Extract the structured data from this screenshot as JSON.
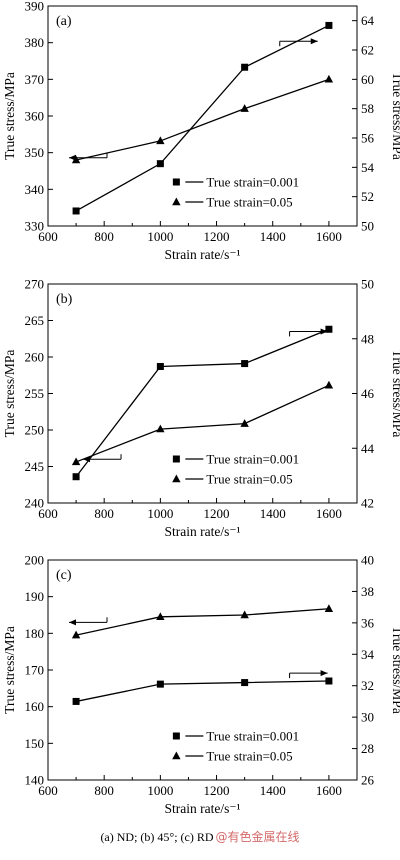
{
  "caption": "(a) ND; (b) 45°; (c) RD",
  "watermark": "@有色金属在线",
  "chart_data": [
    {
      "type": "line",
      "panel_label": "(a)",
      "xlabel": "Strain rate/s⁻¹",
      "ylabel": "True stress/MPa",
      "ylabel_right": "True stress/MPa",
      "xlim": [
        600,
        1700
      ],
      "xticks": [
        600,
        800,
        1000,
        1200,
        1400,
        1600
      ],
      "ylim": [
        330,
        390
      ],
      "yticks": [
        330,
        340,
        350,
        360,
        370,
        380,
        390
      ],
      "ylim_right": [
        50,
        65
      ],
      "yticks_right": [
        50,
        52,
        54,
        56,
        58,
        60,
        62,
        64
      ],
      "series": [
        {
          "name": "True strain=0.001",
          "marker": "square",
          "axis": "left",
          "x": [
            700,
            1000,
            1300,
            1600
          ],
          "y": [
            334.1,
            347.0,
            373.3,
            384.7
          ]
        },
        {
          "name": "True strain=0.05",
          "marker": "triangle",
          "axis": "right",
          "x": [
            700,
            1000,
            1300,
            1600
          ],
          "y": [
            54.5,
            55.8,
            58.0,
            60.0
          ]
        }
      ],
      "arrows": [
        {
          "direction": "left",
          "points_to": "True strain=0.05"
        },
        {
          "direction": "right",
          "points_to": "True strain=0.001"
        }
      ],
      "legend_placement": "bottom-right"
    },
    {
      "type": "line",
      "panel_label": "(b)",
      "xlabel": "Strain rate/s⁻¹",
      "ylabel": "True stress/MPa",
      "ylabel_right": "True stress/MPa",
      "xlim": [
        600,
        1700
      ],
      "xticks": [
        600,
        800,
        1000,
        1200,
        1400,
        1600
      ],
      "ylim": [
        240,
        270
      ],
      "yticks": [
        240,
        245,
        250,
        255,
        260,
        265,
        270
      ],
      "ylim_right": [
        42,
        50
      ],
      "yticks_right": [
        42,
        44,
        46,
        48,
        50
      ],
      "series": [
        {
          "name": "True strain=0.001",
          "marker": "square",
          "axis": "left",
          "x": [
            700,
            1000,
            1300,
            1600
          ],
          "y": [
            243.6,
            258.7,
            259.1,
            263.8
          ]
        },
        {
          "name": "True strain=0.05",
          "marker": "triangle",
          "axis": "right",
          "x": [
            700,
            1000,
            1300,
            1600
          ],
          "y": [
            43.5,
            44.7,
            44.9,
            46.3
          ]
        }
      ],
      "arrows": [
        {
          "direction": "left",
          "points_to": "True strain=0.05"
        },
        {
          "direction": "right",
          "points_to": "True strain=0.001"
        }
      ],
      "legend_placement": "bottom-right"
    },
    {
      "type": "line",
      "panel_label": "(c)",
      "xlabel": "Strain rate/s⁻¹",
      "ylabel": "True stress/MPa",
      "ylabel_right": "True stress/MPa",
      "xlim": [
        600,
        1700
      ],
      "xticks": [
        600,
        800,
        1000,
        1200,
        1400,
        1600
      ],
      "ylim": [
        140,
        200
      ],
      "yticks": [
        140,
        150,
        160,
        170,
        180,
        190,
        200
      ],
      "ylim_right": [
        26,
        40
      ],
      "yticks_right": [
        26,
        28,
        30,
        32,
        34,
        36,
        38,
        40
      ],
      "series": [
        {
          "name": "True strain=0.001",
          "marker": "square",
          "axis": "right",
          "x": [
            700,
            1000,
            1300,
            1600
          ],
          "y": [
            31.0,
            32.1,
            32.2,
            32.3
          ]
        },
        {
          "name": "True strain=0.05",
          "marker": "triangle",
          "axis": "left",
          "x": [
            700,
            1000,
            1300,
            1600
          ],
          "y": [
            179.5,
            184.5,
            185.0,
            186.7
          ]
        }
      ],
      "arrows": [
        {
          "direction": "left",
          "points_to": "True strain=0.05"
        },
        {
          "direction": "right",
          "points_to": "True strain=0.001"
        }
      ],
      "legend_placement": "bottom-right"
    }
  ]
}
